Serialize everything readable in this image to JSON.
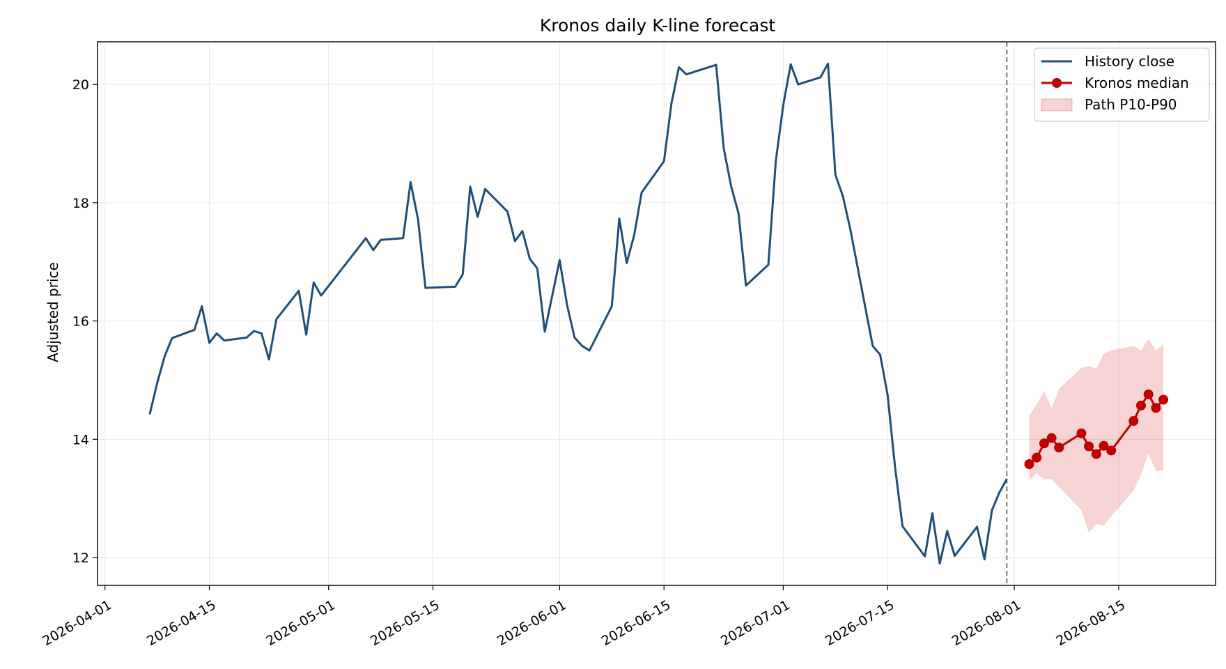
{
  "chart_data": {
    "type": "line",
    "title": "Kronos daily K-line forecast",
    "xlabel": "",
    "ylabel": "Adjusted price",
    "x_range": [
      "2026-03-31",
      "2026-08-28"
    ],
    "ylim": [
      11.53,
      20.72
    ],
    "x_ticks": [
      "2026-04-01",
      "2026-04-15",
      "2026-05-01",
      "2026-05-15",
      "2026-06-01",
      "2026-06-15",
      "2026-07-01",
      "2026-07-15",
      "2026-08-01",
      "2026-08-15"
    ],
    "y_ticks": [
      12,
      14,
      16,
      18,
      20
    ],
    "grid": true,
    "legend_position": "top-right",
    "forecast_start": "2026-07-31",
    "series": [
      {
        "name": "History close",
        "kind": "line",
        "color": "#1f4e79",
        "points": [
          [
            "2026-04-07",
            14.42
          ],
          [
            "2026-04-08",
            14.95
          ],
          [
            "2026-04-09",
            15.4
          ],
          [
            "2026-04-10",
            15.71
          ],
          [
            "2026-04-13",
            15.85
          ],
          [
            "2026-04-14",
            16.25
          ],
          [
            "2026-04-15",
            15.63
          ],
          [
            "2026-04-16",
            15.79
          ],
          [
            "2026-04-17",
            15.67
          ],
          [
            "2026-04-20",
            15.72
          ],
          [
            "2026-04-21",
            15.83
          ],
          [
            "2026-04-22",
            15.79
          ],
          [
            "2026-04-23",
            15.35
          ],
          [
            "2026-04-24",
            16.03
          ],
          [
            "2026-04-27",
            16.51
          ],
          [
            "2026-04-28",
            15.77
          ],
          [
            "2026-04-29",
            16.65
          ],
          [
            "2026-04-30",
            16.43
          ],
          [
            "2026-05-06",
            17.4
          ],
          [
            "2026-05-07",
            17.2
          ],
          [
            "2026-05-08",
            17.37
          ],
          [
            "2026-05-11",
            17.4
          ],
          [
            "2026-05-12",
            18.35
          ],
          [
            "2026-05-13",
            17.72
          ],
          [
            "2026-05-14",
            16.56
          ],
          [
            "2026-05-18",
            16.58
          ],
          [
            "2026-05-19",
            16.79
          ],
          [
            "2026-05-20",
            18.27
          ],
          [
            "2026-05-21",
            17.76
          ],
          [
            "2026-05-22",
            18.23
          ],
          [
            "2026-05-25",
            17.85
          ],
          [
            "2026-05-26",
            17.35
          ],
          [
            "2026-05-27",
            17.52
          ],
          [
            "2026-05-28",
            17.05
          ],
          [
            "2026-05-29",
            16.89
          ],
          [
            "2026-05-30",
            15.82
          ],
          [
            "2026-06-01",
            17.03
          ],
          [
            "2026-06-02",
            16.27
          ],
          [
            "2026-06-03",
            15.72
          ],
          [
            "2026-06-04",
            15.58
          ],
          [
            "2026-06-05",
            15.5
          ],
          [
            "2026-06-08",
            16.25
          ],
          [
            "2026-06-09",
            17.73
          ],
          [
            "2026-06-10",
            16.98
          ],
          [
            "2026-06-11",
            17.45
          ],
          [
            "2026-06-12",
            18.17
          ],
          [
            "2026-06-15",
            18.7
          ],
          [
            "2026-06-16",
            19.68
          ],
          [
            "2026-06-17",
            20.29
          ],
          [
            "2026-06-18",
            20.17
          ],
          [
            "2026-06-22",
            20.33
          ],
          [
            "2026-06-23",
            18.93
          ],
          [
            "2026-06-24",
            18.28
          ],
          [
            "2026-06-25",
            17.82
          ],
          [
            "2026-06-26",
            16.6
          ],
          [
            "2026-06-29",
            16.95
          ],
          [
            "2026-06-30",
            18.7
          ],
          [
            "2026-07-01",
            19.65
          ],
          [
            "2026-07-02",
            20.34
          ],
          [
            "2026-07-03",
            20.0
          ],
          [
            "2026-07-06",
            20.12
          ],
          [
            "2026-07-07",
            20.35
          ],
          [
            "2026-07-08",
            18.47
          ],
          [
            "2026-07-09",
            18.11
          ],
          [
            "2026-07-10",
            17.55
          ],
          [
            "2026-07-13",
            15.58
          ],
          [
            "2026-07-14",
            15.43
          ],
          [
            "2026-07-15",
            14.75
          ],
          [
            "2026-07-16",
            13.53
          ],
          [
            "2026-07-17",
            12.53
          ],
          [
            "2026-07-20",
            12.02
          ],
          [
            "2026-07-21",
            12.75
          ],
          [
            "2026-07-22",
            11.9
          ],
          [
            "2026-07-23",
            12.45
          ],
          [
            "2026-07-24",
            12.03
          ],
          [
            "2026-07-27",
            12.52
          ],
          [
            "2026-07-28",
            11.97
          ],
          [
            "2026-07-29",
            12.8
          ],
          [
            "2026-07-30",
            13.1
          ],
          [
            "2026-07-31",
            13.33
          ]
        ]
      },
      {
        "name": "Kronos median",
        "kind": "line-markers",
        "color": "#c00000",
        "points": [
          [
            "2026-08-03",
            13.58
          ],
          [
            "2026-08-04",
            13.69
          ],
          [
            "2026-08-05",
            13.93
          ],
          [
            "2026-08-06",
            14.02
          ],
          [
            "2026-08-07",
            13.86
          ],
          [
            "2026-08-10",
            14.1
          ],
          [
            "2026-08-11",
            13.88
          ],
          [
            "2026-08-12",
            13.75
          ],
          [
            "2026-08-13",
            13.89
          ],
          [
            "2026-08-14",
            13.81
          ],
          [
            "2026-08-17",
            14.31
          ],
          [
            "2026-08-18",
            14.57
          ],
          [
            "2026-08-19",
            14.76
          ],
          [
            "2026-08-20",
            14.53
          ],
          [
            "2026-08-21",
            14.67
          ]
        ]
      },
      {
        "name": "Path P10-P90",
        "kind": "band",
        "color": "#d9534f",
        "opacity": 0.25,
        "x": [
          "2026-08-03",
          "2026-08-04",
          "2026-08-05",
          "2026-08-06",
          "2026-08-07",
          "2026-08-10",
          "2026-08-11",
          "2026-08-12",
          "2026-08-13",
          "2026-08-14",
          "2026-08-17",
          "2026-08-18",
          "2026-08-19",
          "2026-08-20",
          "2026-08-21"
        ],
        "low": [
          13.3,
          13.43,
          13.32,
          13.33,
          13.19,
          12.8,
          12.42,
          12.57,
          12.54,
          12.7,
          13.13,
          13.4,
          13.76,
          13.46,
          13.48
        ],
        "high": [
          14.4,
          14.59,
          14.81,
          14.53,
          14.85,
          15.21,
          15.24,
          15.19,
          15.45,
          15.5,
          15.58,
          15.5,
          15.7,
          15.5,
          15.61
        ]
      }
    ]
  }
}
